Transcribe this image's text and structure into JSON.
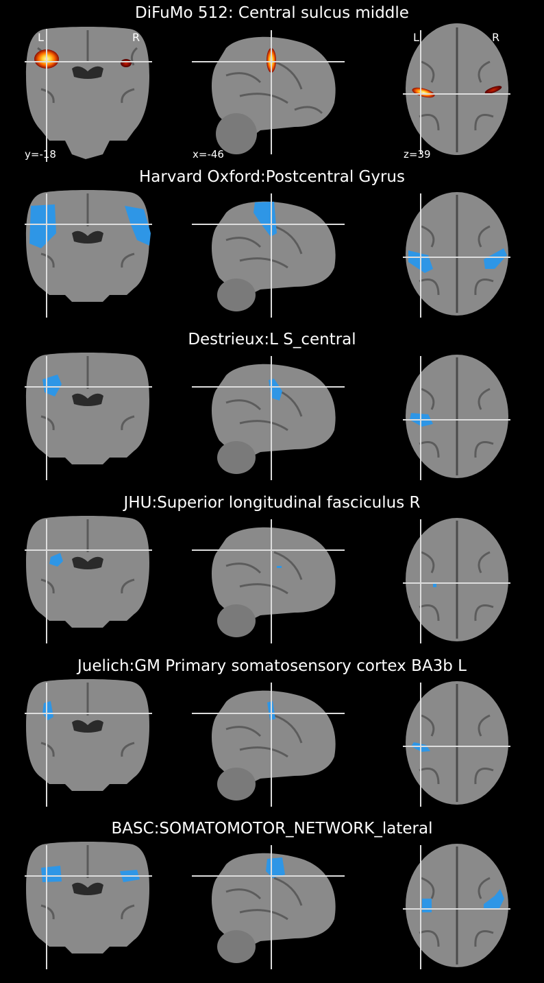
{
  "figure": {
    "panels": [
      {
        "title": "DiFuMo 512: Central sulcus middle",
        "show_annotations": true,
        "colormap": "cold_hot",
        "coords": [
          "y=-18",
          "x=-46",
          "z=39"
        ],
        "orientation_labels": [
          "L",
          "R",
          "L",
          "R"
        ]
      },
      {
        "title": "Harvard Oxford:Postcentral Gyrus",
        "show_annotations": false,
        "colormap": "blue",
        "overlay": "ho"
      },
      {
        "title": "Destrieux:L S_central",
        "show_annotations": false,
        "colormap": "blue",
        "overlay": "destrieux"
      },
      {
        "title": "JHU:Superior longitudinal fasciculus R",
        "show_annotations": false,
        "colormap": "blue",
        "overlay": "jhu"
      },
      {
        "title": "Juelich:GM Primary somatosensory cortex BA3b L",
        "show_annotations": false,
        "colormap": "blue",
        "overlay": "juelich"
      },
      {
        "title": "BASC:SOMATOMOTOR_NETWORK_lateral",
        "show_annotations": false,
        "colormap": "blue",
        "overlay": "basc"
      }
    ],
    "colors": {
      "background": "#000000",
      "brain_gray": "#8a8a8a",
      "overlay_blue": "#2e96e6",
      "hot_core": "#fff3a0",
      "hot_mid": "#ff8a00",
      "hot_edge": "#a01000",
      "crosshair": "#ffffff"
    }
  }
}
